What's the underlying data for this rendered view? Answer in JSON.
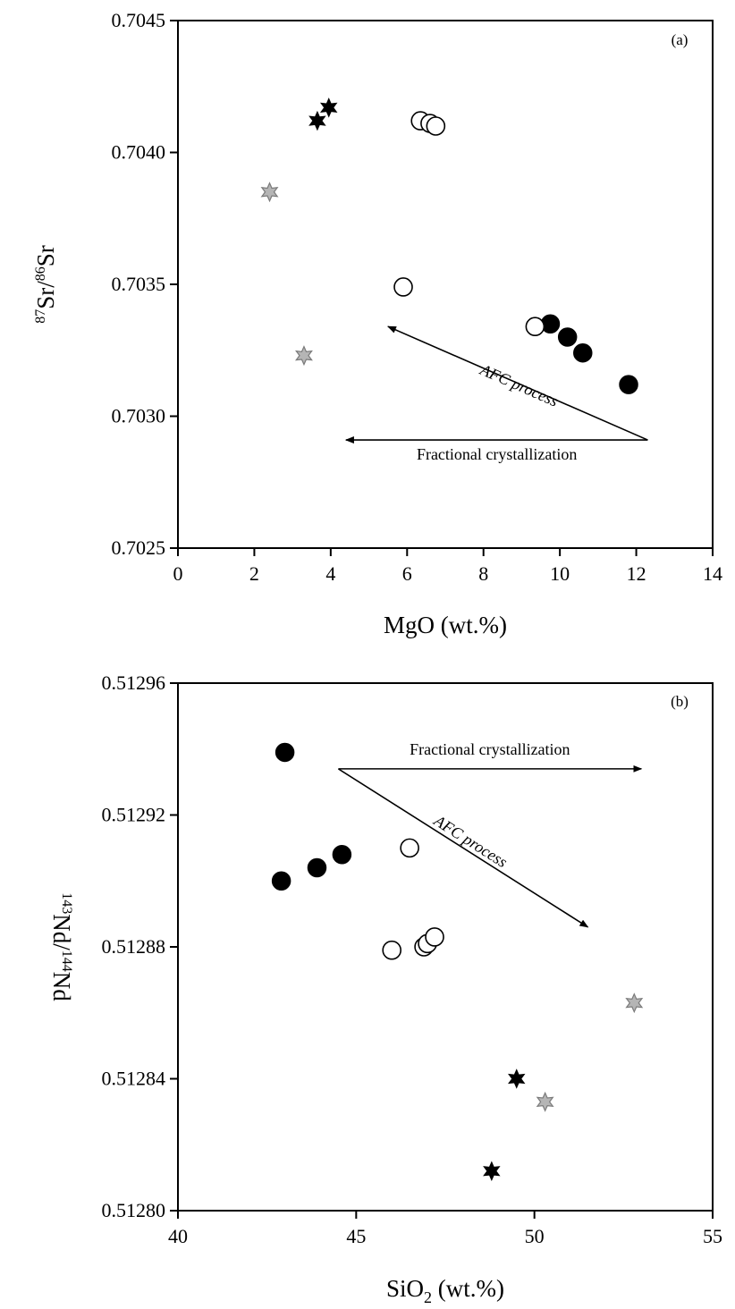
{
  "chart_data": [
    {
      "type": "scatter",
      "panel": "(a)",
      "xlabel": "MgO (wt.%)",
      "ylabel": "87Sr/86Sr",
      "ylabel_parts": {
        "sup1": "87",
        "base1": "Sr/",
        "sup2": "86",
        "base2": "Sr"
      },
      "xlim": [
        0,
        14
      ],
      "ylim": [
        0.7025,
        0.7045
      ],
      "x_ticks": [
        0,
        2,
        4,
        6,
        8,
        10,
        12,
        14
      ],
      "x_tick_labels": [
        "0",
        "2",
        "4",
        "6",
        "8",
        "10",
        "12",
        "14"
      ],
      "y_ticks": [
        0.7025,
        0.703,
        0.7035,
        0.704,
        0.7045
      ],
      "y_tick_labels": [
        "0.7025",
        "0.7030",
        "0.7035",
        "0.7040",
        "0.7045"
      ],
      "series": [
        {
          "marker": "filled-circle",
          "points": [
            [
              9.75,
              0.70335
            ],
            [
              10.2,
              0.7033
            ],
            [
              10.6,
              0.70324
            ],
            [
              11.8,
              0.70312
            ]
          ]
        },
        {
          "marker": "open-circle",
          "points": [
            [
              9.35,
              0.70334
            ],
            [
              5.9,
              0.70349
            ],
            [
              6.35,
              0.70412
            ],
            [
              6.6,
              0.70411
            ],
            [
              6.75,
              0.7041
            ]
          ]
        },
        {
          "marker": "black-star",
          "points": [
            [
              3.65,
              0.70412
            ],
            [
              3.95,
              0.70417
            ]
          ]
        },
        {
          "marker": "grey-star",
          "points": [
            [
              2.4,
              0.70385
            ],
            [
              3.3,
              0.70323
            ]
          ]
        }
      ],
      "annotations": [
        {
          "text": "AFC process",
          "from": [
            12.3,
            0.70291
          ],
          "to": [
            5.5,
            0.70334
          ]
        },
        {
          "text": "Fractional crystallization",
          "from": [
            12.3,
            0.70291
          ],
          "to": [
            4.4,
            0.70291
          ]
        }
      ]
    },
    {
      "type": "scatter",
      "panel": "(b)",
      "xlabel": "SiO2 (wt.%)",
      "xlabel_parts": {
        "base1": "SiO",
        "sub": "2",
        "base2": " (wt.%)"
      },
      "ylabel": "143Nd/144Nd",
      "ylabel_parts": {
        "sup1": "143",
        "base1": "Nd/",
        "sup2": "144",
        "base2": "Nd"
      },
      "xlim": [
        40,
        55
      ],
      "ylim": [
        0.5128,
        0.51296
      ],
      "x_ticks": [
        40,
        45,
        50,
        55
      ],
      "x_tick_labels": [
        "40",
        "45",
        "50",
        "55"
      ],
      "y_ticks": [
        0.5128,
        0.51284,
        0.51288,
        0.51292,
        0.51296
      ],
      "y_tick_labels": [
        "0.51280",
        "0.51284",
        "0.51288",
        "0.51292",
        "0.51296"
      ],
      "series": [
        {
          "marker": "filled-circle",
          "points": [
            [
              43,
              0.512939
            ],
            [
              42.9,
              0.5129
            ],
            [
              43.9,
              0.512904
            ],
            [
              44.6,
              0.512908
            ]
          ]
        },
        {
          "marker": "open-circle",
          "points": [
            [
              46.5,
              0.51291
            ],
            [
              46.0,
              0.512879
            ],
            [
              46.9,
              0.51288
            ],
            [
              47.0,
              0.512881
            ],
            [
              47.2,
              0.512883
            ]
          ]
        },
        {
          "marker": "black-star",
          "points": [
            [
              49.5,
              0.51284
            ],
            [
              48.8,
              0.512812
            ]
          ]
        },
        {
          "marker": "grey-star",
          "points": [
            [
              52.8,
              0.512863
            ],
            [
              50.3,
              0.512833
            ]
          ]
        }
      ],
      "annotations": [
        {
          "text": "Fractional crystallization",
          "from": [
            44.5,
            0.512934
          ],
          "to": [
            53.0,
            0.512934
          ]
        },
        {
          "text": "AFC process",
          "from": [
            44.5,
            0.512934
          ],
          "to": [
            51.5,
            0.512886
          ]
        }
      ]
    }
  ],
  "colors": {
    "filled": "#000000",
    "open_fill": "#ffffff",
    "grey_star": "#b5b5b5"
  }
}
